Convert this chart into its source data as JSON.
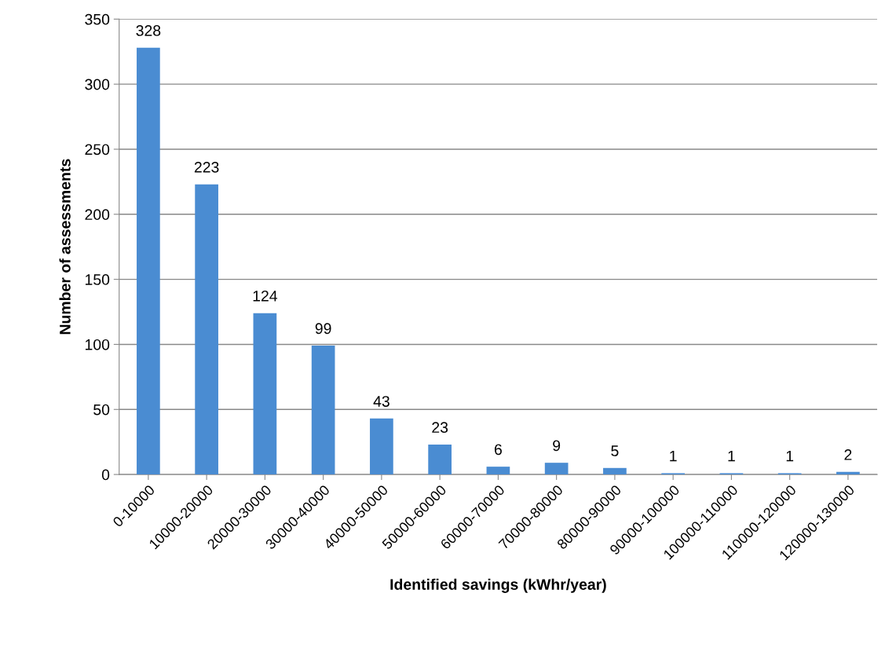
{
  "chart_data": {
    "type": "bar",
    "xlabel": "Identified savings (kWhr/year)",
    "ylabel": "Number of assessments",
    "categories": [
      "0-10000",
      "10000-20000",
      "20000-30000",
      "30000-40000",
      "40000-50000",
      "50000-60000",
      "60000-70000",
      "70000-80000",
      "80000-90000",
      "90000-100000",
      "100000-110000",
      "110000-120000",
      "120000-130000"
    ],
    "values": [
      328,
      223,
      124,
      99,
      43,
      23,
      6,
      9,
      5,
      1,
      1,
      1,
      2
    ],
    "color": "#4a8cd2",
    "ylim": [
      0,
      350
    ],
    "yticks": [
      0,
      50,
      100,
      150,
      200,
      250,
      300,
      350
    ],
    "grid": "y",
    "data_labels": true,
    "legend": false
  }
}
